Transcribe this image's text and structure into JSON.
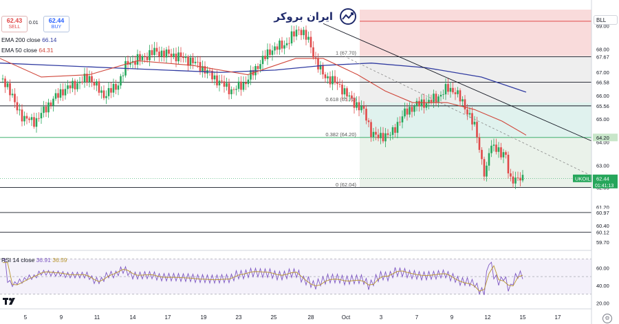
{
  "header": {
    "sell_price": "62.43",
    "sell_label": "SELL",
    "spread": "0.01",
    "buy_price": "62.44",
    "buy_label": "BUY",
    "symbol_box": "BLL",
    "ema200_label": "EMA 200 close",
    "ema200_value": "66.14",
    "ema50_label": "EMA 50 close",
    "ema50_value": "64.31",
    "rsi_label": "RSI 14 close",
    "rsi_value": "36.91",
    "rsi_ma_value": "36.59"
  },
  "brand": {
    "logo_text": "ایران بروکر",
    "logo_icon": "stock-arrow-icon",
    "platform_icon": "tradingview-icon",
    "settings_icon": "gear-icon",
    "brand_color": "#1f2a6b"
  },
  "chart_data": {
    "type": "candlestick",
    "symbol": "UKOIL",
    "last_price": "62.44",
    "countdown": "01:41:13",
    "x_ticks": [
      "5",
      "9",
      "11",
      "14",
      "17",
      "19",
      "23",
      "25",
      "28",
      "Oct",
      "3",
      "7",
      "9",
      "12",
      "15",
      "17"
    ],
    "y_ticks": [
      "69.00",
      "68.00",
      "67.00",
      "66.00",
      "65.00",
      "64.00",
      "63.00",
      "61.20",
      "60.40",
      "59.70"
    ],
    "ylim": [
      59.4,
      69.7
    ],
    "horizontal_levels": [
      {
        "label": "67.67",
        "value": 67.67,
        "color": "#131722",
        "box_bg": "#ffffff"
      },
      {
        "label": "66.58",
        "value": 66.58,
        "color": "#131722",
        "box_bg": "#ffffff"
      },
      {
        "label": "65.56",
        "value": 65.56,
        "color": "#131722",
        "box_bg": "#ffffff"
      },
      {
        "label": "64.20",
        "value": 64.2,
        "color": "#26a65b",
        "box_bg": "#c8e6c9"
      },
      {
        "label": "62.05",
        "value": 62.05,
        "color": "#131722",
        "box_bg": "#ffffff"
      },
      {
        "label": "60.97",
        "value": 60.97,
        "color": "#131722",
        "box_bg": "#ffffff"
      },
      {
        "label": "60.12",
        "value": 60.12,
        "color": "#131722",
        "box_bg": "#ffffff"
      }
    ],
    "fib_levels": [
      {
        "label": "1 (67.70)",
        "value": 67.7
      },
      {
        "label": "0.618 (65.70)",
        "value": 65.7
      },
      {
        "label": "0.382 (64.20)",
        "value": 64.2
      },
      {
        "label": "0 (62.04)",
        "value": 62.04
      }
    ],
    "red_zone_top": 69.2,
    "rsi": {
      "y_ticks": [
        "60.00",
        "40.00",
        "20.00"
      ],
      "ylim": [
        14,
        72
      ],
      "bands": [
        70,
        50,
        30
      ]
    },
    "colors": {
      "up": "#26a65b",
      "down": "#e04848",
      "ema200": "#2f3aa0",
      "ema50": "#d0463a",
      "rsi": "#7e57c2",
      "rsi_ma": "#b8952b"
    }
  }
}
